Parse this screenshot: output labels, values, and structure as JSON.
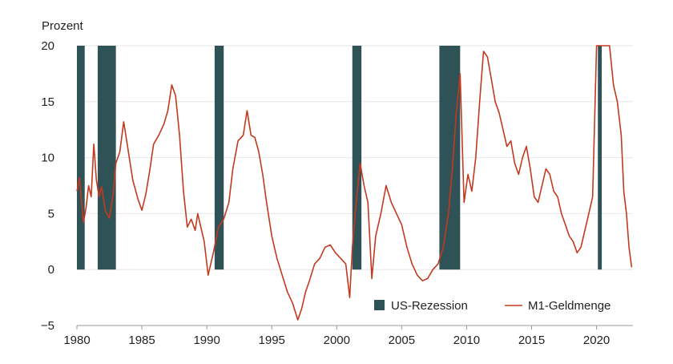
{
  "chart_data": {
    "type": "line",
    "ylabel": "Prozent",
    "xlim": [
      1980,
      2022.8
    ],
    "ylim": [
      -5,
      20
    ],
    "y_ticks": [
      -5,
      0,
      5,
      10,
      15,
      20
    ],
    "x_ticks": [
      1980,
      1985,
      1990,
      1995,
      2000,
      2005,
      2010,
      2015,
      2020
    ],
    "grid": "horizontal",
    "legend_position": "bottom-right",
    "colors": {
      "recession": "#2f5257",
      "m1": "#c4391e",
      "grid": "#e6e6e6",
      "axis": "#999999"
    },
    "recessions": {
      "name": "US-Rezession",
      "periods": [
        [
          1980.0,
          1980.6
        ],
        [
          1981.6,
          1983.0
        ],
        [
          1990.6,
          1991.3
        ],
        [
          2001.2,
          2001.9
        ],
        [
          2007.9,
          2009.5
        ],
        [
          2020.1,
          2020.4
        ]
      ]
    },
    "series": [
      {
        "name": "M1-Geldmenge",
        "x": [
          1980.0,
          1980.2,
          1980.5,
          1980.7,
          1980.9,
          1981.1,
          1981.3,
          1981.5,
          1981.7,
          1981.9,
          1982.2,
          1982.5,
          1982.8,
          1983.0,
          1983.3,
          1983.6,
          1983.9,
          1984.3,
          1984.7,
          1985.0,
          1985.3,
          1985.6,
          1985.9,
          1986.3,
          1986.7,
          1987.0,
          1987.3,
          1987.6,
          1987.9,
          1988.2,
          1988.5,
          1988.8,
          1989.1,
          1989.3,
          1989.5,
          1989.8,
          1990.1,
          1990.5,
          1990.9,
          1991.3,
          1991.7,
          1992.0,
          1992.4,
          1992.8,
          1993.1,
          1993.4,
          1993.7,
          1994.0,
          1994.3,
          1994.6,
          1995.0,
          1995.4,
          1995.8,
          1996.2,
          1996.6,
          1997.0,
          1997.3,
          1997.6,
          1997.9,
          1998.3,
          1998.7,
          1999.1,
          1999.5,
          1999.9,
          2000.3,
          2000.7,
          2001.0,
          2001.2,
          2001.5,
          2001.8,
          2002.1,
          2002.4,
          2002.7,
          2003.0,
          2003.4,
          2003.8,
          2004.2,
          2004.6,
          2005.0,
          2005.4,
          2005.8,
          2006.2,
          2006.6,
          2007.0,
          2007.4,
          2007.8,
          2008.2,
          2008.6,
          2008.9,
          2009.2,
          2009.5,
          2009.8,
          2010.1,
          2010.4,
          2010.7,
          2011.0,
          2011.3,
          2011.6,
          2011.9,
          2012.2,
          2012.5,
          2012.8,
          2013.1,
          2013.4,
          2013.7,
          2014.0,
          2014.3,
          2014.6,
          2014.9,
          2015.2,
          2015.5,
          2015.8,
          2016.1,
          2016.4,
          2016.7,
          2017.0,
          2017.3,
          2017.6,
          2017.9,
          2018.2,
          2018.5,
          2018.8,
          2019.1,
          2019.4,
          2019.7,
          2020.0,
          2020.2,
          2020.4,
          2020.7,
          2021.0,
          2021.3,
          2021.6,
          2021.9,
          2022.1,
          2022.3,
          2022.5,
          2022.7
        ],
        "values": [
          7.0,
          8.2,
          4.2,
          5.5,
          7.5,
          6.5,
          11.2,
          8.0,
          6.5,
          7.4,
          5.2,
          4.6,
          6.8,
          9.5,
          10.5,
          13.2,
          11.0,
          8.0,
          6.3,
          5.3,
          6.7,
          8.8,
          11.2,
          12.0,
          13.0,
          14.2,
          16.5,
          15.5,
          12.0,
          7.0,
          3.8,
          4.5,
          3.5,
          5.0,
          4.0,
          2.5,
          -0.5,
          1.5,
          3.8,
          4.5,
          6.0,
          9.0,
          11.5,
          12.0,
          14.2,
          12.0,
          11.8,
          10.5,
          8.5,
          6.0,
          3.0,
          1.0,
          -0.5,
          -2.0,
          -3.0,
          -4.5,
          -3.5,
          -2.0,
          -1.0,
          0.5,
          1.0,
          2.0,
          2.2,
          1.5,
          1.0,
          0.5,
          -2.5,
          2.0,
          6.0,
          9.5,
          7.5,
          6.0,
          -0.8,
          3.0,
          5.0,
          7.5,
          6.0,
          5.0,
          4.0,
          2.0,
          0.5,
          -0.5,
          -1.0,
          -0.8,
          0.0,
          0.5,
          2.0,
          5.0,
          9.0,
          14.0,
          17.5,
          6.0,
          8.5,
          7.0,
          10.0,
          15.0,
          19.5,
          19.0,
          17.0,
          15.0,
          14.0,
          12.5,
          11.0,
          11.5,
          9.5,
          8.5,
          10.0,
          11.0,
          9.0,
          6.5,
          6.0,
          7.5,
          9.0,
          8.5,
          7.0,
          6.5,
          5.0,
          4.0,
          3.0,
          2.5,
          1.5,
          2.0,
          3.5,
          5.0,
          6.5,
          20.0,
          20.0,
          20.0,
          20.0,
          20.0,
          16.5,
          15.0,
          12.0,
          7.0,
          5.0,
          2.0,
          0.2
        ]
      }
    ]
  }
}
